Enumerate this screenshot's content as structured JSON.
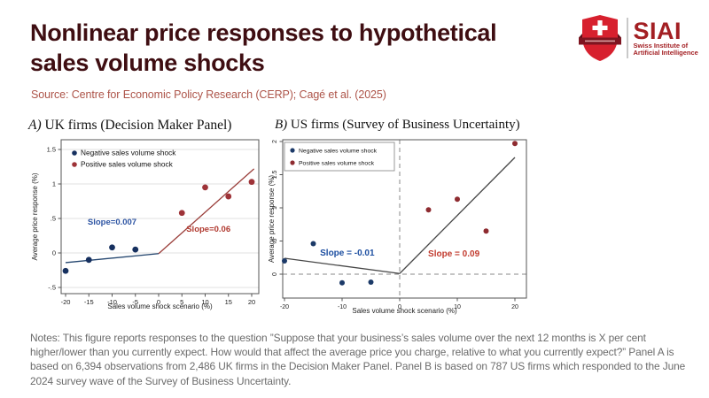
{
  "header": {
    "title_line1": "Nonlinear price responses to hypothetical",
    "title_line2": "sales volume shocks",
    "title_color": "#3f0e12",
    "logo": {
      "name": "SIAI",
      "subtitle_line1": "Swiss Institute of",
      "subtitle_line2": "Artificial Intelligence",
      "shield_color": "#d7202e",
      "banner_color": "#7e1420",
      "text_color": "#a31f23"
    }
  },
  "source": {
    "text": "Source: Centre for Economic Policy Research (CERP); Cagé et al. (2025)",
    "color": "#ad5449"
  },
  "notes": {
    "text": "Notes: This figure reports responses to the question ”Suppose that your business’s sales volume over the next 12 months is X per cent higher/lower than you currently expect. How would that affect the average price you charge, relative to what you currently expect?” Panel A is based on 6,394 observations from 2,486 UK firms in the Decision Maker Panel. Panel B is based on 787 US firms which responded to the June 2024 survey wave of the Survey of Business Uncertainty.",
    "color": "#6b6b6b"
  },
  "chart_data": [
    {
      "type": "scatter",
      "title_prefix": "A)",
      "title_rest": " UK firms (Decision Maker Panel)",
      "title": "A) UK firms (Decision Maker Panel)",
      "xlabel": "Sales volume shock scenario (%)",
      "ylabel": "Average price response (%)",
      "xlim": [
        -21.5,
        21.7
      ],
      "ylim": [
        -0.65,
        1.65
      ],
      "grid": true,
      "dashed_refs": false,
      "xticks": [
        {
          "v": -20,
          "label": "-20"
        },
        {
          "v": -15,
          "label": "-15"
        },
        {
          "v": -10,
          "label": "-10"
        },
        {
          "v": -5,
          "label": "-5"
        },
        {
          "v": 0,
          "label": "0"
        },
        {
          "v": 5,
          "label": "5"
        },
        {
          "v": 10,
          "label": "10"
        },
        {
          "v": 15,
          "label": "15"
        },
        {
          "v": 20,
          "label": "20"
        }
      ],
      "yticks": [
        {
          "v": -0.5,
          "label": "-.5"
        },
        {
          "v": 0,
          "label": "0"
        },
        {
          "v": 0.5,
          "label": ".5"
        },
        {
          "v": 1,
          "label": "1"
        },
        {
          "v": 1.5,
          "label": "1.5"
        }
      ],
      "series": [
        {
          "name": "Negative sales volume shock",
          "color": "#16305f",
          "points": [
            [
              -20,
              -0.26
            ],
            [
              -15,
              -0.1
            ],
            [
              -10,
              0.08
            ],
            [
              -5,
              0.05
            ]
          ]
        },
        {
          "name": "Positive sales volume shock",
          "color": "#9e3338",
          "points": [
            [
              5,
              0.58
            ],
            [
              10,
              0.95
            ],
            [
              15,
              0.82
            ],
            [
              20,
              1.03
            ]
          ]
        }
      ],
      "fit_lines": [
        {
          "color": "#24466f",
          "from": [
            -20,
            -0.14
          ],
          "to": [
            0,
            -0.01
          ],
          "slope": 0.007
        },
        {
          "color": "#9a3e3a",
          "from": [
            0,
            -0.01
          ],
          "to": [
            20.5,
            1.22
          ],
          "slope": 0.06
        }
      ],
      "annotations": [
        {
          "text": "Slope=0.007",
          "x": -10,
          "y": 0.41,
          "color": "#2d54a3"
        },
        {
          "text": "Slope=0.06",
          "x": 10.7,
          "y": 0.31,
          "color": "#b0392f"
        }
      ],
      "legend": {
        "boxed": false,
        "position": "top-left"
      }
    },
    {
      "type": "scatter",
      "title_prefix": "B)",
      "title_rest": " US firms (Survey of Business Uncertainty)",
      "title": "B) US firms (Survey of Business Uncertainty)",
      "xlabel": "Sales volume shock scenario (%)",
      "ylabel": "Average price response (%)",
      "xlim": [
        -21.7,
        20.9
      ],
      "ylim": [
        -0.36,
        2.06
      ],
      "grid": false,
      "dashed_refs": true,
      "dashed_h": 0,
      "dashed_v": 0,
      "xticks": [
        {
          "v": -20,
          "label": "-20"
        },
        {
          "v": -10,
          "label": "-10"
        },
        {
          "v": 0,
          "label": "0"
        },
        {
          "v": 10,
          "label": "10"
        },
        {
          "v": 20,
          "label": "20"
        }
      ],
      "yticks": [
        {
          "v": 0,
          "label": "0"
        },
        {
          "v": 0.5,
          "label": ".5"
        },
        {
          "v": 1,
          "label": "1"
        },
        {
          "v": 1.5,
          "label": "1.5"
        },
        {
          "v": 2,
          "label": "2"
        }
      ],
      "series": [
        {
          "name": "Negative sales volume shock",
          "color": "#1c3a68",
          "points": [
            [
              -20,
              0.2
            ],
            [
              -15,
              0.46
            ],
            [
              -10,
              -0.13
            ],
            [
              -5,
              -0.12
            ]
          ]
        },
        {
          "name": "Positive sales volume shock",
          "color": "#8e2b30",
          "points": [
            [
              5,
              0.97
            ],
            [
              10,
              1.13
            ],
            [
              15,
              0.65
            ],
            [
              20,
              1.97
            ]
          ]
        }
      ],
      "fit_lines": [
        {
          "color": "#474747",
          "from": [
            -20,
            0.24
          ],
          "to": [
            0,
            0.01
          ],
          "slope": -0.01
        },
        {
          "color": "#474747",
          "from": [
            0,
            0.01
          ],
          "to": [
            20,
            1.76
          ],
          "slope": 0.09
        }
      ],
      "annotations": [
        {
          "text": "Slope = -0.01",
          "x": -9.1,
          "y": 0.28,
          "color": "#1d4fa1"
        },
        {
          "text": "Slope = 0.09",
          "x": 9.4,
          "y": 0.27,
          "color": "#c23b2e"
        }
      ],
      "legend": {
        "boxed": true,
        "position": "top-left"
      }
    }
  ]
}
